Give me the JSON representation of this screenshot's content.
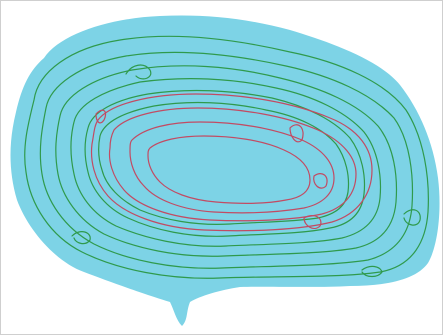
{
  "image": {
    "kind": "lake contour sketch",
    "colors": {
      "background": "#ffffff",
      "frame": "#cfcfcf",
      "water": "#7dd3e6",
      "outer_contours": "#2f9a4c",
      "inner_contours": "#c24b63"
    },
    "contours": {
      "outer_count": 6,
      "inner_count": 4
    }
  }
}
